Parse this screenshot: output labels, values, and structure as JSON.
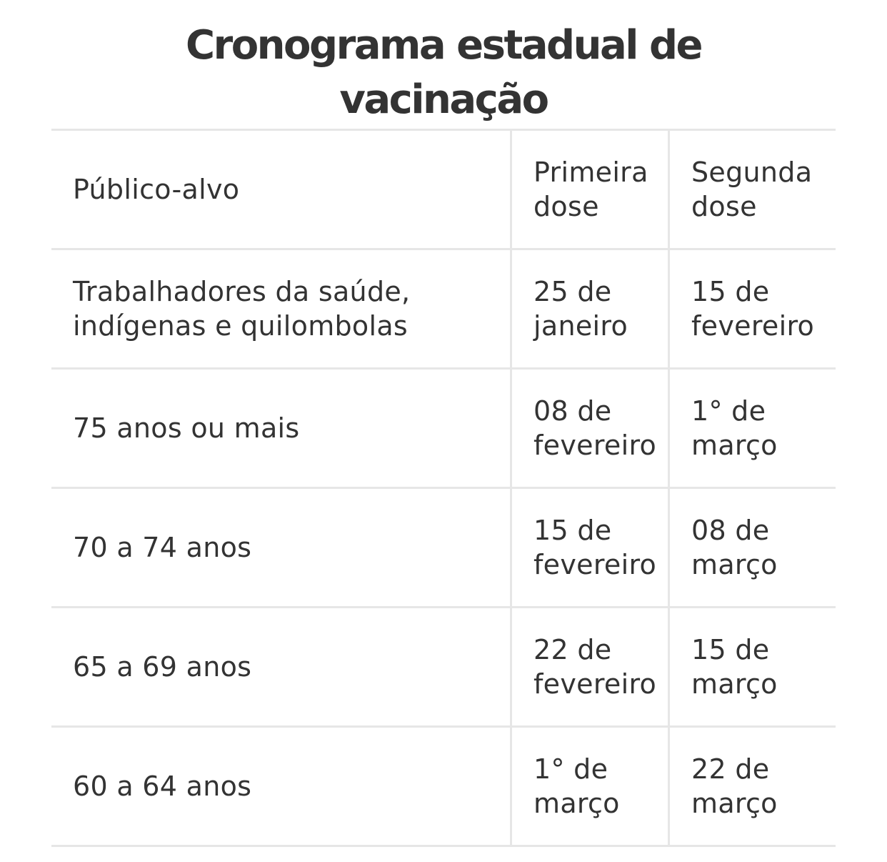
{
  "title_line1": "Cronograma estadual de",
  "title_line2": "vacinação",
  "table": {
    "headers": {
      "publico": "Público-alvo",
      "primeira": "Primeira dose",
      "segunda": "Segunda dose"
    },
    "rows": [
      {
        "publico": "Trabalhadores da saúde, indígenas e quilombolas",
        "primeira": "25 de janeiro",
        "segunda": "15 de fevereiro"
      },
      {
        "publico": "75 anos ou mais",
        "primeira": "08 de fevereiro",
        "segunda": "1° de março"
      },
      {
        "publico": "70 a 74 anos",
        "primeira": "15 de fevereiro",
        "segunda": "08 de março"
      },
      {
        "publico": "65 a 69 anos",
        "primeira": "22 de fevereiro",
        "segunda": "15 de março"
      },
      {
        "publico": "60 a 64 anos",
        "primeira": "1° de março",
        "segunda": "22 de março"
      }
    ]
  },
  "colors": {
    "text": "#333333",
    "border": "#e6e6e6",
    "background": "#ffffff"
  }
}
